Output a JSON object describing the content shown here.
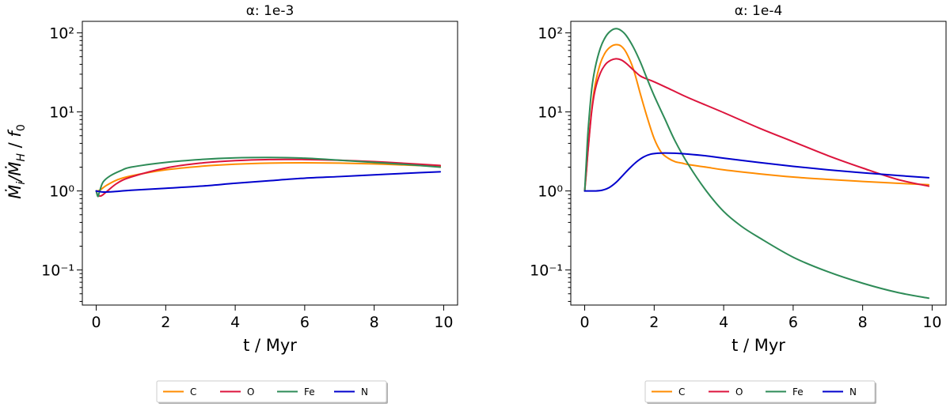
{
  "chart_data": [
    {
      "type": "line",
      "title": "α: 1e-3",
      "xlabel": "t / Myr",
      "ylabel": "Ṁi/ṀH / f0",
      "xlim": [
        -0.4,
        10.4
      ],
      "ylim": [
        0.036,
        140
      ],
      "yscale": "log",
      "xticks": [
        0,
        2,
        4,
        6,
        8,
        10
      ],
      "yticks": [
        0.1,
        1,
        10,
        100
      ],
      "grid": false,
      "legend": {
        "position": "bottom-center",
        "columns": 4
      },
      "series": [
        {
          "name": "C",
          "color": "#FF8C00",
          "x": [
            0,
            0.1,
            0.3,
            0.6,
            1,
            2,
            3,
            4,
            5,
            6,
            7,
            8,
            9,
            9.9
          ],
          "y": [
            1.0,
            1.02,
            1.18,
            1.38,
            1.55,
            1.85,
            2.05,
            2.18,
            2.25,
            2.27,
            2.25,
            2.2,
            2.12,
            2.05
          ]
        },
        {
          "name": "O",
          "color": "#DC143C",
          "x": [
            0,
            0.05,
            0.15,
            0.3,
            0.6,
            1,
            2,
            3,
            4,
            5,
            6,
            7,
            8,
            9,
            9.9
          ],
          "y": [
            1.0,
            0.88,
            0.87,
            0.98,
            1.25,
            1.5,
            1.95,
            2.25,
            2.42,
            2.5,
            2.5,
            2.45,
            2.35,
            2.22,
            2.1
          ]
        },
        {
          "name": "Fe",
          "color": "#2E8B57",
          "x": [
            0,
            0.05,
            0.1,
            0.2,
            0.4,
            0.7,
            1,
            2,
            3,
            4,
            5,
            6,
            7,
            8,
            9,
            9.9
          ],
          "y": [
            1.0,
            0.85,
            1.0,
            1.3,
            1.55,
            1.8,
            2.0,
            2.3,
            2.5,
            2.62,
            2.65,
            2.6,
            2.45,
            2.3,
            2.15,
            2.0
          ]
        },
        {
          "name": "N",
          "color": "#0000CD",
          "x": [
            0,
            0.2,
            0.5,
            1,
            2,
            3,
            4,
            5,
            6,
            7,
            8,
            9,
            9.9
          ],
          "y": [
            1.0,
            0.97,
            0.98,
            1.02,
            1.08,
            1.15,
            1.25,
            1.35,
            1.45,
            1.52,
            1.6,
            1.68,
            1.75
          ]
        }
      ]
    },
    {
      "type": "line",
      "title": "α: 1e-4",
      "xlabel": "t / Myr",
      "ylabel": "",
      "xlim": [
        -0.4,
        10.4
      ],
      "ylim": [
        0.036,
        140
      ],
      "yscale": "log",
      "xticks": [
        0,
        2,
        4,
        6,
        8,
        10
      ],
      "yticks": [
        0.1,
        1,
        10,
        100
      ],
      "grid": false,
      "legend": {
        "position": "bottom-center",
        "columns": 4
      },
      "series": [
        {
          "name": "C",
          "color": "#FF8C00",
          "x": [
            0,
            0.05,
            0.1,
            0.2,
            0.3,
            0.45,
            0.6,
            0.75,
            0.9,
            1.05,
            1.2,
            1.4,
            1.6,
            1.8,
            2.0,
            2.2,
            2.4,
            2.6,
            2.8,
            3.0,
            3.5,
            4,
            5,
            6,
            7,
            8,
            9,
            9.9
          ],
          "y": [
            1.0,
            1.8,
            3.5,
            10.5,
            22,
            41,
            57,
            67,
            71,
            68,
            56,
            35,
            17,
            8.5,
            4.6,
            3.1,
            2.6,
            2.35,
            2.25,
            2.15,
            2.0,
            1.85,
            1.65,
            1.5,
            1.4,
            1.32,
            1.25,
            1.2
          ]
        },
        {
          "name": "O",
          "color": "#DC143C",
          "x": [
            0,
            0.05,
            0.1,
            0.2,
            0.3,
            0.45,
            0.6,
            0.75,
            0.9,
            1.05,
            1.2,
            1.4,
            1.6,
            1.8,
            2,
            2.5,
            3,
            4,
            5,
            6,
            7,
            8,
            9,
            9.9
          ],
          "y": [
            1.0,
            1.8,
            3.4,
            10,
            19,
            31,
            40,
            45,
            47,
            45.5,
            41,
            34,
            28.5,
            26,
            24,
            19,
            15,
            9.8,
            6.3,
            4.2,
            2.8,
            1.95,
            1.4,
            1.15
          ]
        },
        {
          "name": "Fe",
          "color": "#2E8B57",
          "x": [
            0,
            0.05,
            0.1,
            0.2,
            0.3,
            0.45,
            0.6,
            0.75,
            0.9,
            1.05,
            1.2,
            1.4,
            1.6,
            1.8,
            2.0,
            2.3,
            2.6,
            3.0,
            3.5,
            4,
            4.5,
            5,
            6,
            7,
            8,
            9,
            9.9
          ],
          "y": [
            1.0,
            2.5,
            6,
            19,
            36,
            64,
            89,
            106,
            113,
            107,
            92,
            66,
            43,
            26,
            16,
            8.3,
            4.3,
            2.1,
            1.0,
            0.55,
            0.36,
            0.26,
            0.145,
            0.095,
            0.068,
            0.052,
            0.044
          ]
        },
        {
          "name": "N",
          "color": "#0000CD",
          "x": [
            0,
            0.3,
            0.5,
            0.7,
            0.9,
            1.1,
            1.3,
            1.5,
            1.7,
            1.9,
            2.1,
            2.3,
            2.6,
            3,
            3.5,
            4,
            5,
            6,
            7,
            8,
            9,
            9.9
          ],
          "y": [
            1.0,
            1.0,
            1.02,
            1.1,
            1.28,
            1.58,
            1.95,
            2.35,
            2.7,
            2.92,
            3.0,
            3.02,
            3.0,
            2.92,
            2.78,
            2.6,
            2.3,
            2.05,
            1.85,
            1.7,
            1.57,
            1.47
          ]
        }
      ]
    }
  ]
}
